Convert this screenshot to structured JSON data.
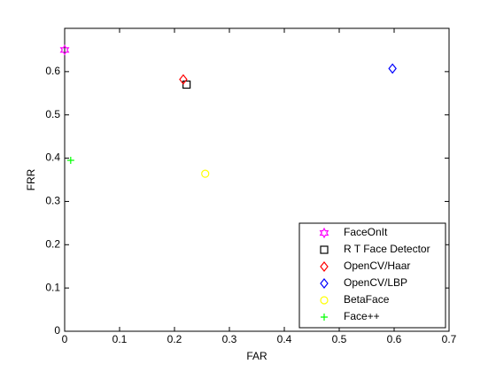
{
  "chart_data": {
    "type": "scatter",
    "xlabel": "FAR",
    "ylabel": "FRR",
    "xlim": [
      0,
      0.7
    ],
    "ylim": [
      0,
      0.7
    ],
    "xticks": [
      0,
      0.1,
      0.2,
      0.3,
      0.4,
      0.5,
      0.6,
      0.7
    ],
    "yticks": [
      0,
      0.1,
      0.2,
      0.3,
      0.4,
      0.5,
      0.6
    ],
    "legend": "lower-right",
    "series": [
      {
        "name": "FaceOnIt",
        "color": "#ff00ff",
        "marker": "hexagram",
        "x": [
          0
        ],
        "y": [
          0.65
        ]
      },
      {
        "name": "R T Face Detector",
        "color": "#000000",
        "marker": "square",
        "x": [
          0.222
        ],
        "y": [
          0.57
        ]
      },
      {
        "name": "OpenCV/Haar",
        "color": "#ff0000",
        "marker": "diamond",
        "x": [
          0.216
        ],
        "y": [
          0.582
        ]
      },
      {
        "name": "OpenCV/LBP",
        "color": "#0000ff",
        "marker": "diamond",
        "x": [
          0.597
        ],
        "y": [
          0.607
        ]
      },
      {
        "name": "BetaFace",
        "color": "#ffff00",
        "marker": "circle",
        "x": [
          0.256
        ],
        "y": [
          0.364
        ]
      },
      {
        "name": "Face++",
        "color": "#00ff00",
        "marker": "plus",
        "x": [
          0.011
        ],
        "y": [
          0.395
        ]
      }
    ]
  }
}
